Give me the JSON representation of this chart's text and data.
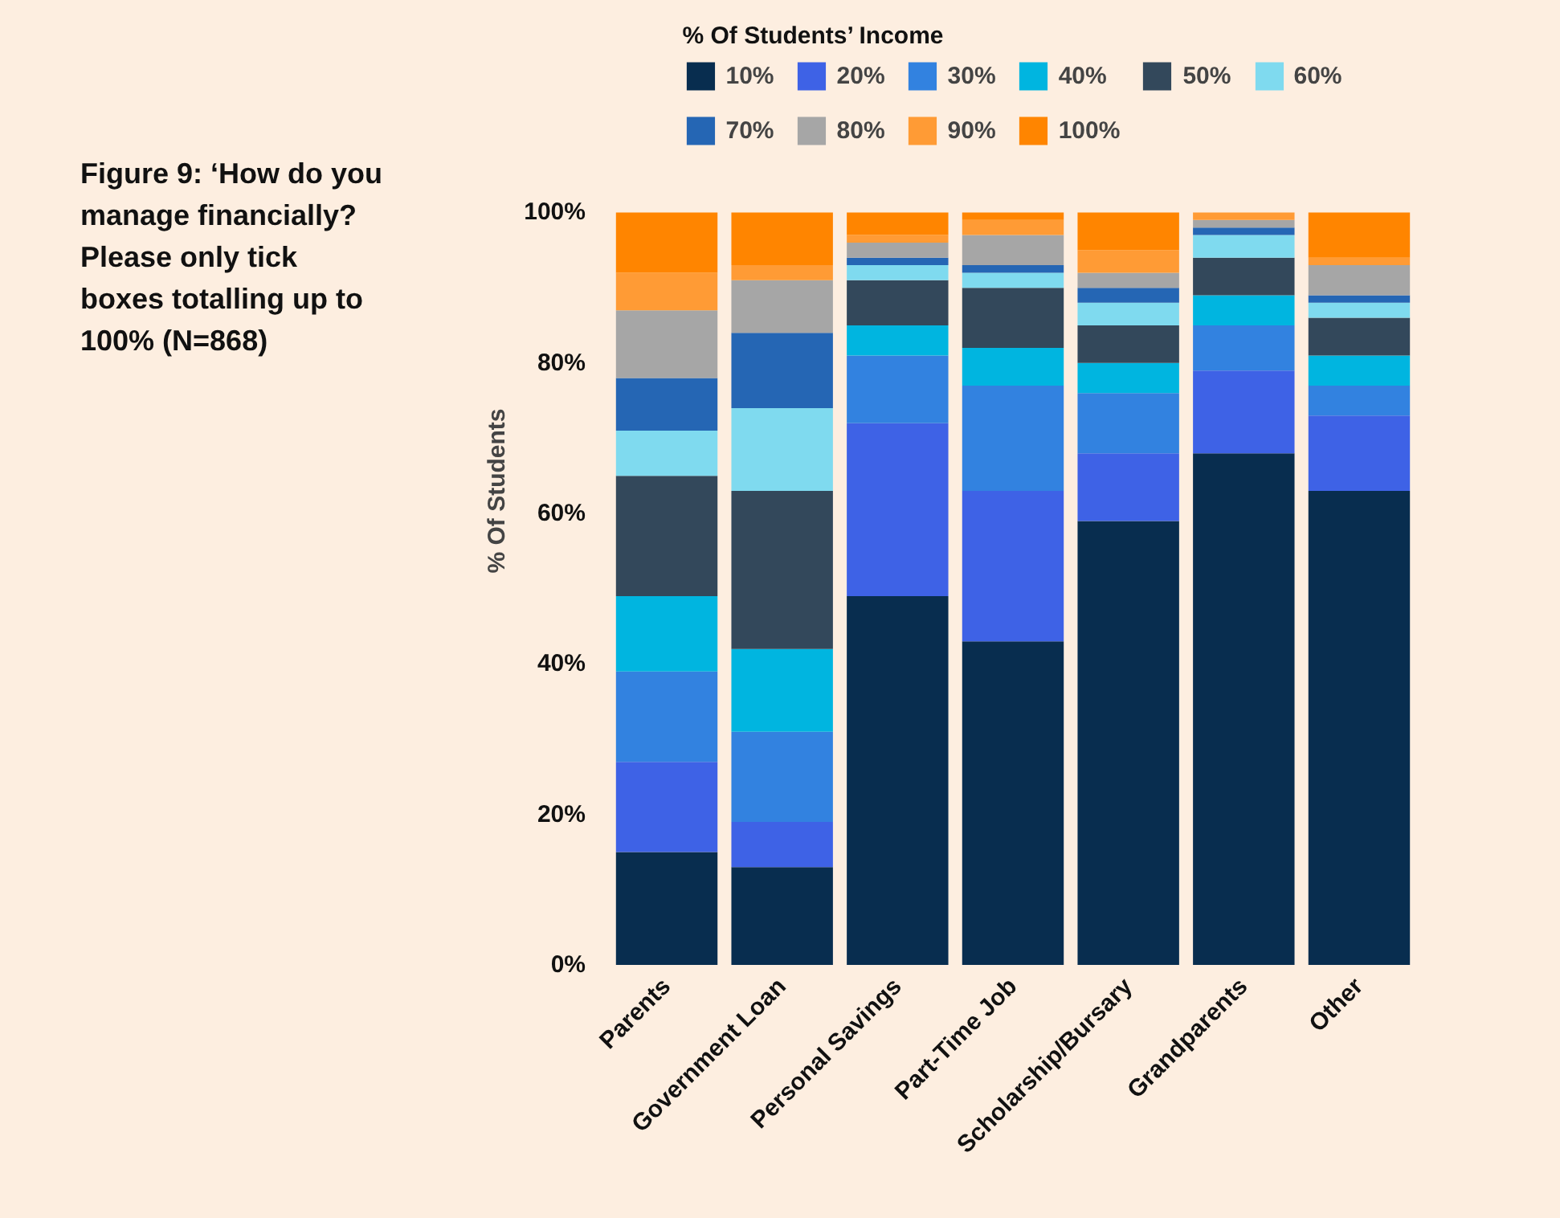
{
  "chart_data": {
    "type": "bar",
    "stacked": true,
    "title": "Figure 9: ‘How do you manage financially? Please only tick boxes totalling up to 100% (N=868)",
    "ylabel": "% Of Students",
    "legend_title": "% Of Students’ Income",
    "legend": "top",
    "grid": false,
    "categories": [
      "Parents",
      "Government Loan",
      "Personal Savings",
      "Part-Time Job",
      "Scholarship/Bursary",
      "Grandparents",
      "Other"
    ],
    "ylim": [
      0,
      100
    ],
    "yticks": [
      {
        "value": 0,
        "label": "0%"
      },
      {
        "value": 20,
        "label": "20%"
      },
      {
        "value": 40,
        "label": "40%"
      },
      {
        "value": 60,
        "label": "60%"
      },
      {
        "value": 80,
        "label": "80%"
      },
      {
        "value": 100,
        "label": "100%"
      }
    ],
    "series": [
      {
        "name": "10%",
        "color": "#082d4f",
        "values": [
          15,
          13,
          49,
          43,
          59,
          68,
          63
        ]
      },
      {
        "name": "20%",
        "color": "#3e62e6",
        "values": [
          12,
          6,
          23,
          20,
          9,
          11,
          10
        ]
      },
      {
        "name": "30%",
        "color": "#3282e0",
        "values": [
          12,
          12,
          9,
          14,
          8,
          6,
          4
        ]
      },
      {
        "name": "40%",
        "color": "#00b5e0",
        "values": [
          10,
          11,
          4,
          5,
          4,
          4,
          4
        ]
      },
      {
        "name": "50%",
        "color": "#33485b",
        "values": [
          16,
          21,
          6,
          8,
          5,
          5,
          5
        ]
      },
      {
        "name": "60%",
        "color": "#7fdaef",
        "values": [
          6,
          11,
          2,
          2,
          3,
          3,
          2
        ]
      },
      {
        "name": "70%",
        "color": "#2566b4",
        "values": [
          7,
          10,
          1,
          1,
          2,
          1,
          1
        ]
      },
      {
        "name": "80%",
        "color": "#a6a6a6",
        "values": [
          9,
          7,
          2,
          4,
          2,
          1,
          4
        ]
      },
      {
        "name": "90%",
        "color": "#ff9b35",
        "values": [
          5,
          2,
          1,
          2,
          3,
          1,
          1
        ]
      },
      {
        "name": "100%",
        "color": "#ff8500",
        "values": [
          8,
          7,
          3,
          1,
          5,
          0,
          6
        ]
      }
    ]
  }
}
